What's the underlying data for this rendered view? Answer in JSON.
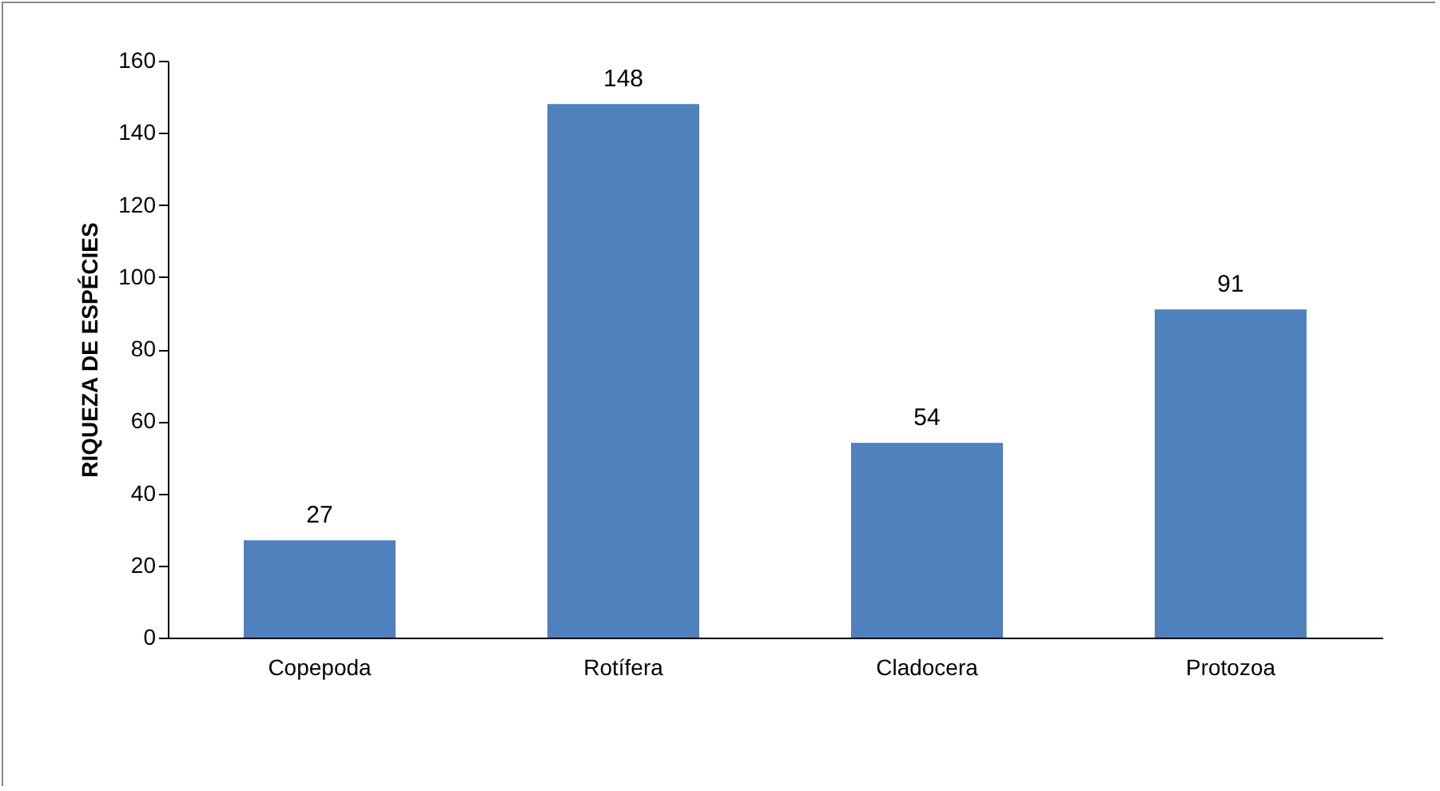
{
  "chart_data": {
    "type": "bar",
    "ylabel": "RIQUEZA DE ESPÉCIES",
    "categories": [
      "Copepoda",
      "Rotífera",
      "Cladocera",
      "Protozoa"
    ],
    "values": [
      27,
      148,
      54,
      91
    ],
    "color": "#4f81bd",
    "data_labels": true,
    "grid": false,
    "ylim": [
      0,
      160
    ],
    "yticks": [
      0,
      20,
      40,
      60,
      80,
      100,
      120,
      140,
      160
    ]
  }
}
